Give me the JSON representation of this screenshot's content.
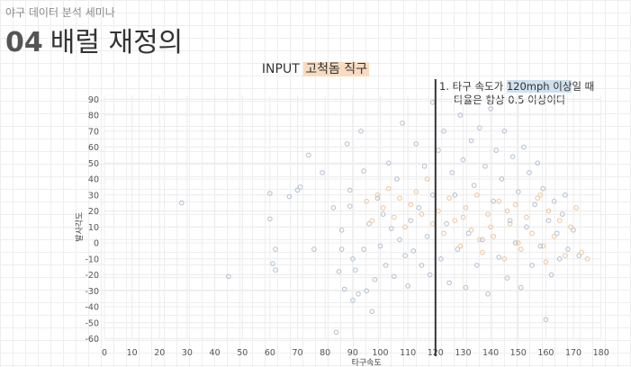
{
  "header": {
    "kicker": "야구 데이터 분석 세미나",
    "number": "04",
    "title": "배럴 재정의"
  },
  "chart_title": {
    "prefix": "INPUT",
    "highlight": "고척돔 직구"
  },
  "annotation": {
    "line1_pre": "1. 타구 속도가 ",
    "line1_hl": "120mph 이상",
    "line1_post": "일 때",
    "line2": "타율은 항상 0.5 이상이다"
  },
  "chart_data": {
    "type": "scatter",
    "xlabel": "타구속도",
    "ylabel": "발사각도",
    "xlim": [
      0,
      180
    ],
    "ylim": [
      -60,
      90
    ],
    "xticks": [
      0,
      10,
      20,
      30,
      40,
      50,
      60,
      70,
      80,
      90,
      100,
      110,
      120,
      130,
      140,
      150,
      160,
      170,
      180
    ],
    "yticks": [
      90,
      80,
      70,
      60,
      50,
      40,
      30,
      20,
      10,
      0,
      -10,
      -20,
      -30,
      -40,
      -50,
      -60
    ],
    "vline_x": 120,
    "grid": true,
    "legend": "none",
    "colors": {
      "series_a": "#b3bfcf",
      "series_b": "#f0c49a",
      "vline": "#333333"
    },
    "series": [
      {
        "color": "#b3bfcf",
        "points": [
          [
            28,
            25
          ],
          [
            45,
            -21
          ],
          [
            60,
            31
          ],
          [
            60,
            15
          ],
          [
            61,
            -13
          ],
          [
            62,
            -17
          ],
          [
            62,
            -4
          ],
          [
            67,
            29
          ],
          [
            70,
            33
          ],
          [
            71,
            35
          ],
          [
            74,
            55
          ],
          [
            76,
            -4
          ],
          [
            79,
            44
          ],
          [
            83,
            22
          ],
          [
            84,
            -56
          ],
          [
            85,
            -18
          ],
          [
            86,
            -4
          ],
          [
            86,
            8
          ],
          [
            87,
            -29
          ],
          [
            88,
            62
          ],
          [
            89,
            23
          ],
          [
            89,
            33
          ],
          [
            90,
            -10
          ],
          [
            90,
            -36
          ],
          [
            91,
            -17
          ],
          [
            92,
            -32
          ],
          [
            93,
            70
          ],
          [
            94,
            45
          ],
          [
            94,
            -4
          ],
          [
            95,
            -30
          ],
          [
            96,
            12
          ],
          [
            97,
            -43
          ],
          [
            98,
            -23
          ],
          [
            99,
            28
          ],
          [
            100,
            -2
          ],
          [
            101,
            18
          ],
          [
            102,
            -14
          ],
          [
            103,
            50
          ],
          [
            104,
            9
          ],
          [
            105,
            -21
          ],
          [
            106,
            40
          ],
          [
            107,
            2
          ],
          [
            108,
            75
          ],
          [
            109,
            -8
          ],
          [
            110,
            -27
          ],
          [
            111,
            14
          ],
          [
            112,
            -5
          ],
          [
            113,
            62
          ],
          [
            114,
            22
          ],
          [
            115,
            -14
          ],
          [
            116,
            48
          ],
          [
            117,
            4
          ],
          [
            118,
            -20
          ],
          [
            119,
            88
          ],
          [
            119,
            30
          ],
          [
            121,
            58
          ],
          [
            122,
            -10
          ],
          [
            123,
            70
          ],
          [
            124,
            12
          ],
          [
            125,
            -25
          ],
          [
            126,
            44
          ],
          [
            127,
            30
          ],
          [
            128,
            -4
          ],
          [
            129,
            80
          ],
          [
            130,
            52
          ],
          [
            131,
            -28
          ],
          [
            132,
            6
          ],
          [
            133,
            64
          ],
          [
            134,
            36
          ],
          [
            135,
            -14
          ],
          [
            136,
            72
          ],
          [
            137,
            2
          ],
          [
            138,
            48
          ],
          [
            139,
            -32
          ],
          [
            140,
            84
          ],
          [
            141,
            26
          ],
          [
            142,
            58
          ],
          [
            143,
            -9
          ],
          [
            144,
            40
          ],
          [
            145,
            70
          ],
          [
            146,
            -22
          ],
          [
            147,
            14
          ],
          [
            148,
            54
          ],
          [
            149,
            0
          ],
          [
            150,
            32
          ],
          [
            151,
            -28
          ],
          [
            152,
            60
          ],
          [
            153,
            10
          ],
          [
            154,
            44
          ],
          [
            155,
            -14
          ],
          [
            156,
            24
          ],
          [
            157,
            50
          ],
          [
            158,
            -2
          ],
          [
            159,
            34
          ],
          [
            160,
            -48
          ],
          [
            161,
            14
          ],
          [
            162,
            -20
          ],
          [
            163,
            26
          ],
          [
            164,
            6
          ],
          [
            165,
            -10
          ],
          [
            166,
            18
          ],
          [
            167,
            30
          ],
          [
            168,
            -4
          ],
          [
            170,
            8
          ],
          [
            172,
            -8
          ]
        ]
      },
      {
        "color": "#f0c49a",
        "points": [
          [
            95,
            26
          ],
          [
            97,
            14
          ],
          [
            99,
            30
          ],
          [
            101,
            22
          ],
          [
            103,
            34
          ],
          [
            105,
            16
          ],
          [
            107,
            28
          ],
          [
            109,
            10
          ],
          [
            111,
            24
          ],
          [
            113,
            32
          ],
          [
            115,
            18
          ],
          [
            117,
            40
          ],
          [
            119,
            12
          ],
          [
            121,
            20
          ],
          [
            123,
            6
          ],
          [
            125,
            28
          ],
          [
            127,
            14
          ],
          [
            129,
            -2
          ],
          [
            131,
            22
          ],
          [
            133,
            8
          ],
          [
            135,
            30
          ],
          [
            137,
            -6
          ],
          [
            139,
            18
          ],
          [
            141,
            4
          ],
          [
            143,
            26
          ],
          [
            145,
            -10
          ],
          [
            147,
            12
          ],
          [
            149,
            24
          ],
          [
            151,
            -4
          ],
          [
            153,
            16
          ],
          [
            155,
            6
          ],
          [
            157,
            28
          ],
          [
            159,
            -2
          ],
          [
            161,
            20
          ],
          [
            163,
            4
          ],
          [
            165,
            14
          ],
          [
            167,
            -8
          ],
          [
            169,
            10
          ],
          [
            171,
            22
          ],
          [
            173,
            -6
          ],
          [
            175,
            -10
          ],
          [
            160,
            -12
          ],
          [
            150,
            0
          ],
          [
            140,
            10
          ],
          [
            130,
            16
          ],
          [
            158,
            30
          ],
          [
            146,
            20
          ],
          [
            136,
            2
          ]
        ]
      }
    ]
  }
}
